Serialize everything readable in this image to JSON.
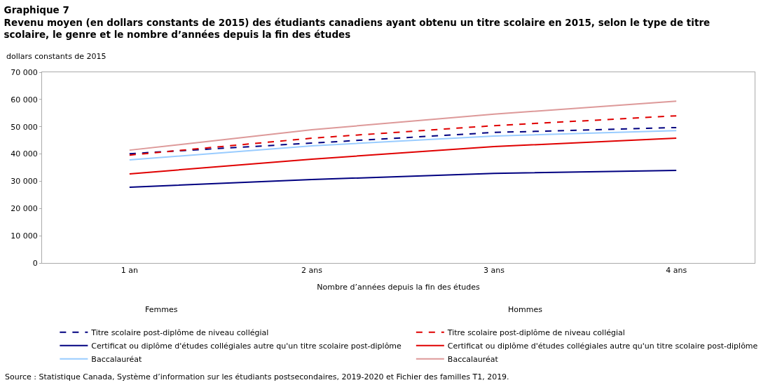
{
  "chart_data": {
    "type": "line",
    "title": "Graphique 7",
    "subtitle": "Revenu moyen (en dollars constants de 2015) des étudiants canadiens ayant obtenu un titre scolaire en 2015, selon le type de titre scolaire, le genre et le nombre d’années depuis la fin des études",
    "ylabel": "dollars constants de 2015",
    "xlabel": "Nombre d’années depuis la fin des études",
    "categories": [
      "1 an",
      "2 ans",
      "3 ans",
      "4 ans"
    ],
    "series": [
      {
        "name": "Titre scolaire post-diplôme de niveau collégial",
        "color": "#000080",
        "line_style": "dashed",
        "values": [
          40100,
          44000,
          47900,
          49700
        ]
      },
      {
        "name": "Titre scolaire post-diplôme de niveau collégial",
        "color": "#e00000",
        "line_style": "dashed",
        "values": [
          39600,
          45800,
          50400,
          54000
        ]
      },
      {
        "name": "Certificat ou diplôme d'études collégiales autre qu'un titre scolaire post-diplôme",
        "color": "#000080",
        "line_style": "solid",
        "values": [
          27800,
          30600,
          32900,
          34000
        ]
      },
      {
        "name": "Certificat ou diplôme d'études collégiales autre qu'un titre scolaire post-diplôme",
        "color": "#e00000",
        "line_style": "solid",
        "values": [
          32700,
          38100,
          42700,
          45800
        ]
      },
      {
        "name": "Baccalauréat",
        "color": "#99ccff",
        "line_style": "solid",
        "values": [
          37800,
          43000,
          46600,
          48600
        ]
      },
      {
        "name": "Baccalauréat",
        "color": "#dd9999",
        "line_style": "solid",
        "values": [
          41400,
          48900,
          54600,
          59400
        ]
      }
    ],
    "ylim": [
      0,
      70000
    ],
    "yticks": [
      {
        "value": 0,
        "label": "0"
      },
      {
        "value": 10000,
        "label": "10 000"
      },
      {
        "value": 20000,
        "label": "20 000"
      },
      {
        "value": 30000,
        "label": "30 000"
      },
      {
        "value": 40000,
        "label": "40 000"
      },
      {
        "value": 50000,
        "label": "50 000"
      },
      {
        "value": 60000,
        "label": "60 000"
      },
      {
        "value": 70000,
        "label": "70 000"
      }
    ],
    "legend": "bottom",
    "marker": "none",
    "annotations": [
      "Femmes",
      "Hommes",
      "Source : Statistique Canada, Système d’information sur les étudiants postsecondaires, 2019-2020 et Fichier des familles T1, 2019."
    ]
  }
}
